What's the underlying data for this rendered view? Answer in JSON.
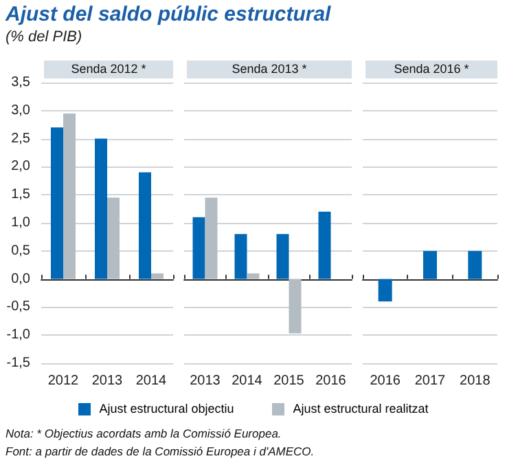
{
  "chart_data": [
    {
      "type": "bar",
      "title": "Ajust del saldo públic estructural",
      "subtitle": "(% del PIB)",
      "annotations": [
        "Senda 2012 *",
        "Nota: * Objectius acordats amb la Comissió Europea.",
        "Font: a partir de dades de la Comissió Europea i d'AMECO."
      ],
      "categories": [
        "2012",
        "2013",
        "2014"
      ],
      "series": [
        {
          "name": "Ajust estructural objectiu",
          "color": "#0068b4",
          "values": [
            2.7,
            2.5,
            1.9
          ]
        },
        {
          "name": "Ajust estructural realitzat",
          "color": "#b3bcc2",
          "values": [
            2.95,
            1.45,
            0.1
          ]
        }
      ],
      "ylim": [
        -1.5,
        3.5
      ],
      "yticks": [
        {
          "value": -1.5,
          "label": "-1,5"
        },
        {
          "value": -1,
          "label": "-1,0"
        },
        {
          "value": -0.5,
          "label": "-0,5"
        },
        {
          "value": 0,
          "label": "0,0"
        },
        {
          "value": 0.5,
          "label": "0,5"
        },
        {
          "value": 1,
          "label": "1,0"
        },
        {
          "value": 1.5,
          "label": "1,5"
        },
        {
          "value": 2,
          "label": "2,0"
        },
        {
          "value": 2.5,
          "label": "2,5"
        },
        {
          "value": 3,
          "label": "3,0"
        },
        {
          "value": 3.5,
          "label": "3,5"
        }
      ],
      "grid": "y",
      "legend": "bottom"
    },
    {
      "type": "bar",
      "annotations": [
        "Senda 2013 *"
      ],
      "categories": [
        "2013",
        "2014",
        "2015",
        "2016"
      ],
      "series": [
        {
          "color": "#0068b4",
          "values": [
            1.1,
            0.8,
            0.8,
            1.2
          ]
        },
        {
          "color": "#b3bcc2",
          "values": [
            1.45,
            0.1,
            -0.97,
            null
          ]
        }
      ],
      "ylim": [
        -1.5,
        3.5
      ],
      "yticks": [
        -1.5,
        -1,
        -0.5,
        0,
        0.5,
        1,
        1.5,
        2,
        2.5,
        3,
        3.5
      ],
      "grid": "y",
      "tick_labels": "x"
    },
    {
      "type": "bar",
      "annotations": [
        "Senda 2016 *"
      ],
      "categories": [
        "2016",
        "2017",
        "2018"
      ],
      "series": [
        {
          "color": "#0068b4",
          "values": [
            -0.4,
            0.5,
            0.5
          ]
        }
      ],
      "ylim": [
        -1.5,
        3.5
      ],
      "yticks": [
        -1.5,
        -1,
        -0.5,
        0,
        0.5,
        1,
        1.5,
        2,
        2.5,
        3,
        3.5
      ],
      "grid": "y",
      "tick_labels": "x"
    }
  ]
}
